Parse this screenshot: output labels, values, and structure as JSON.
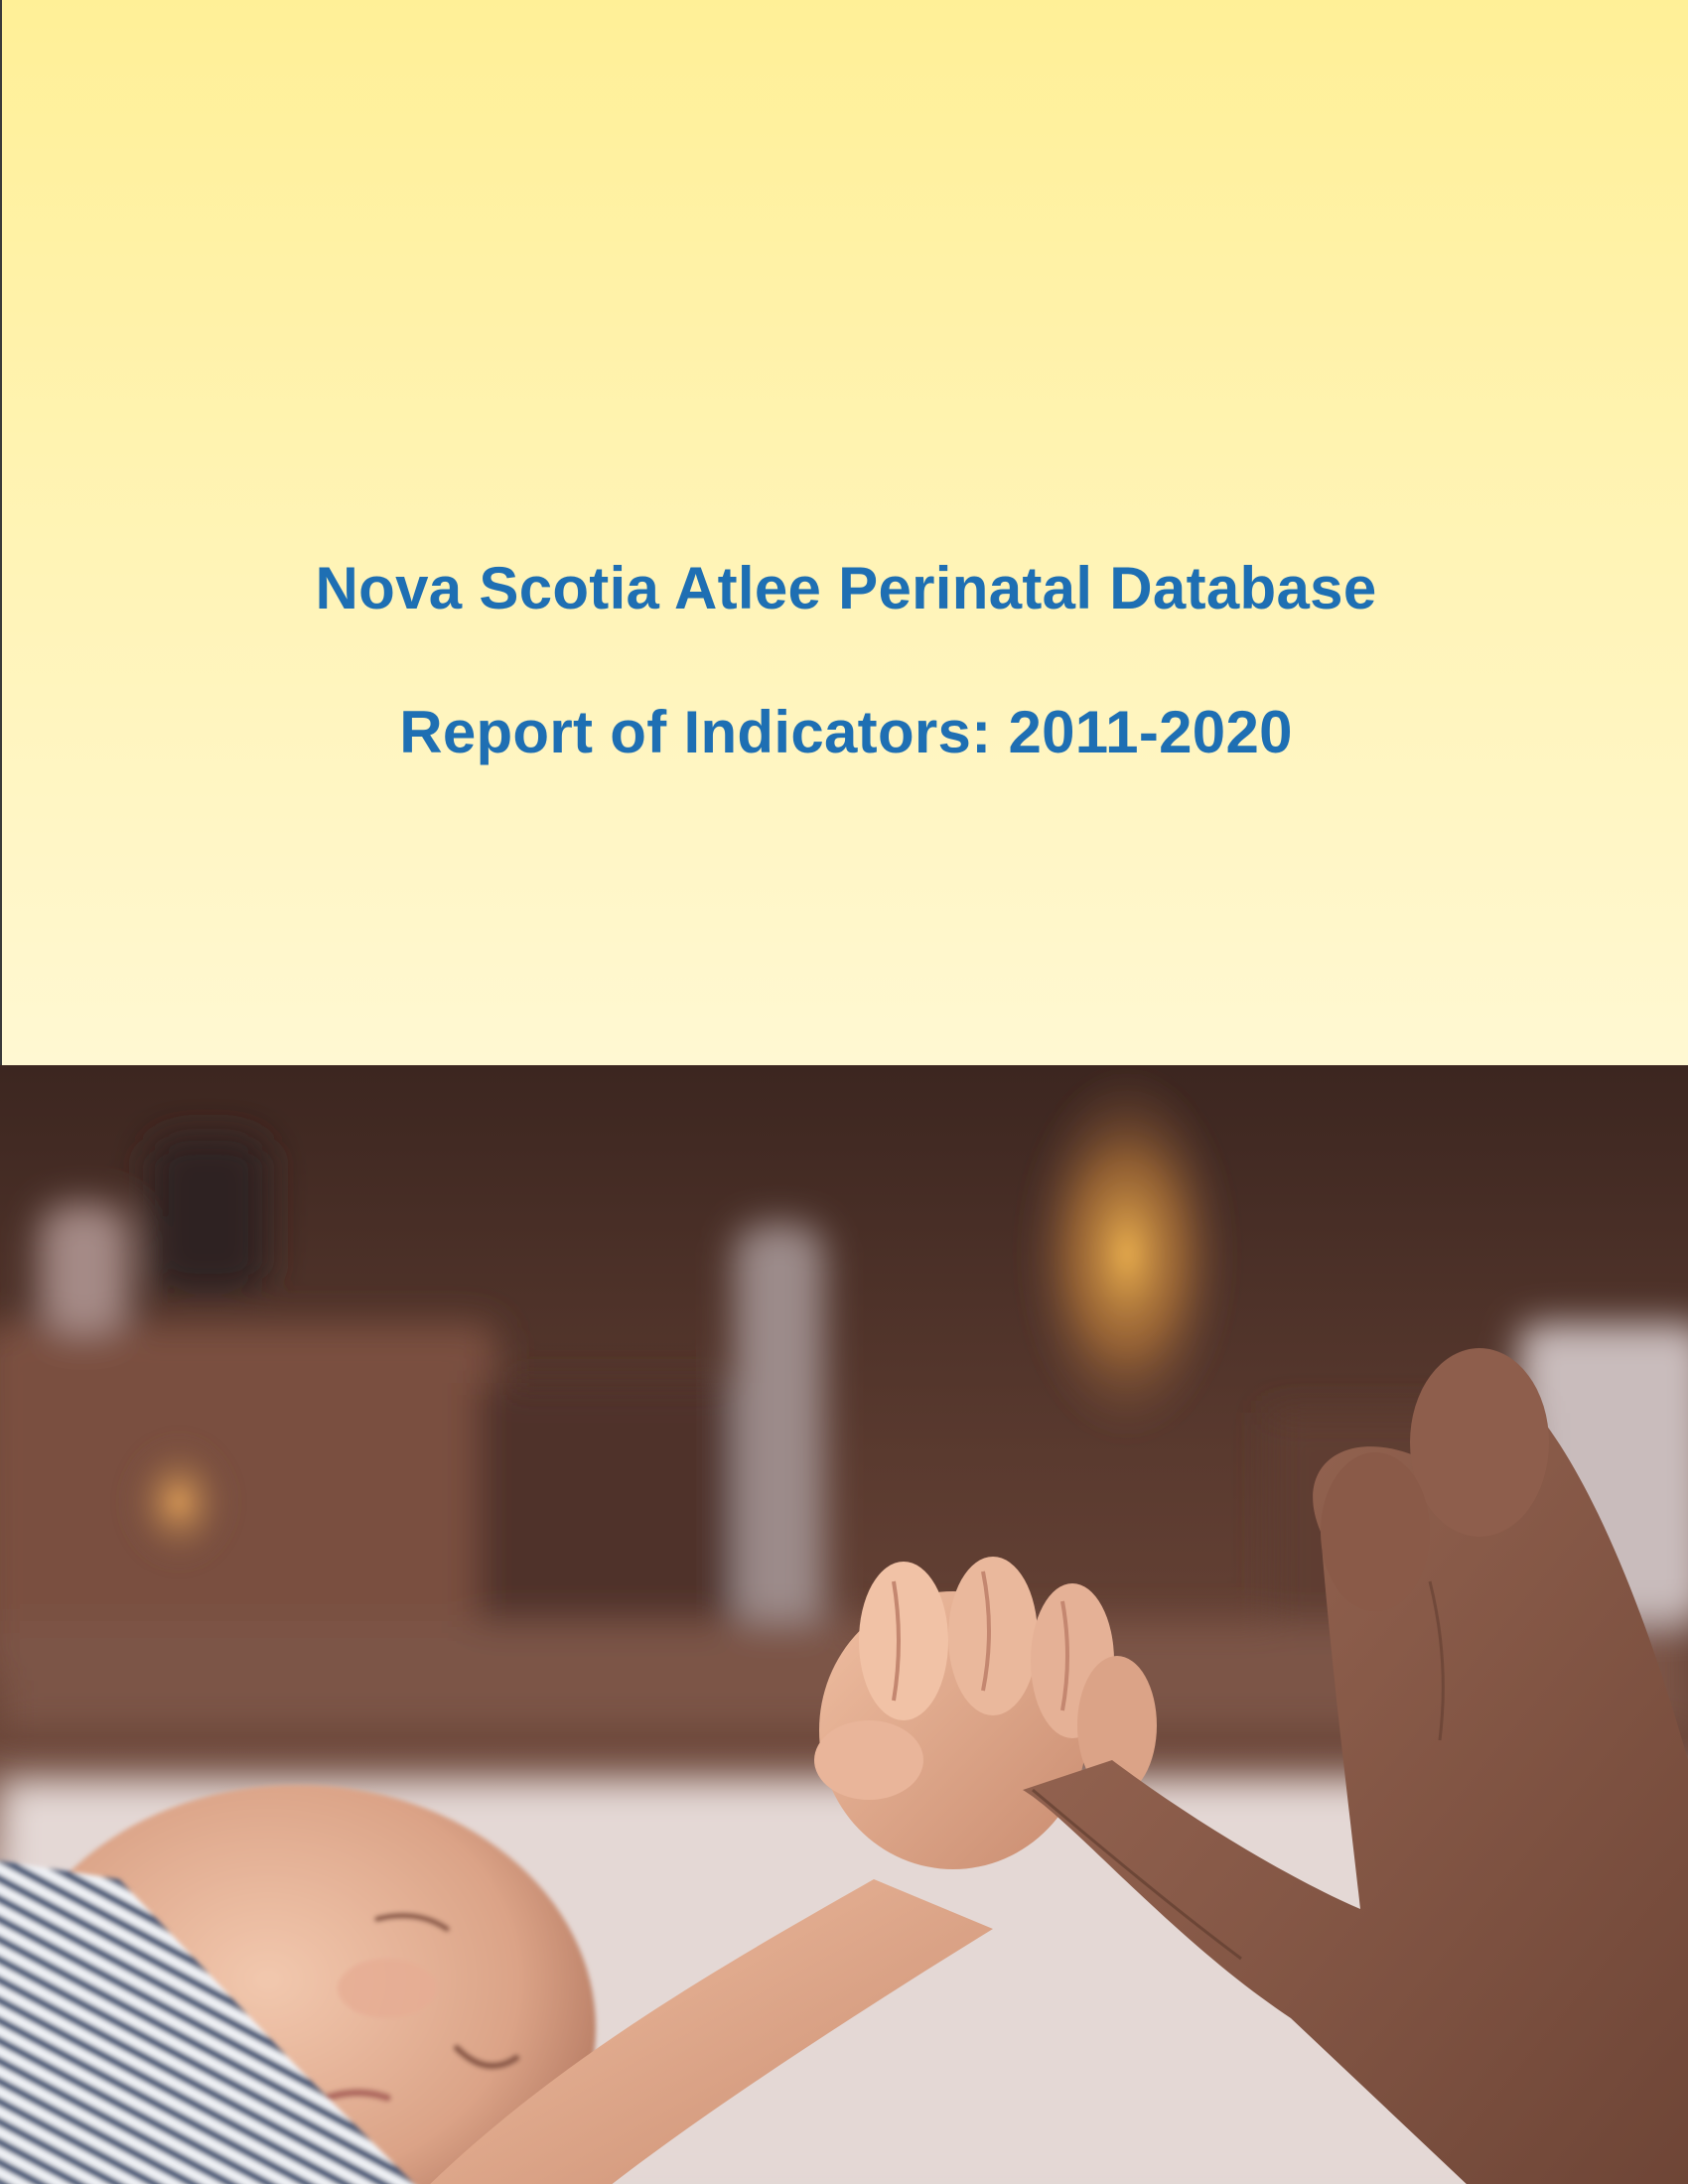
{
  "cover": {
    "title": "Nova Scotia Atlee Perinatal Database",
    "subtitle": "Report of Indicators: 2011-2020"
  },
  "colors": {
    "title_blue": "#1e6fb3",
    "banner_top": "#fff097",
    "banner_bottom": "#fff8d2"
  }
}
